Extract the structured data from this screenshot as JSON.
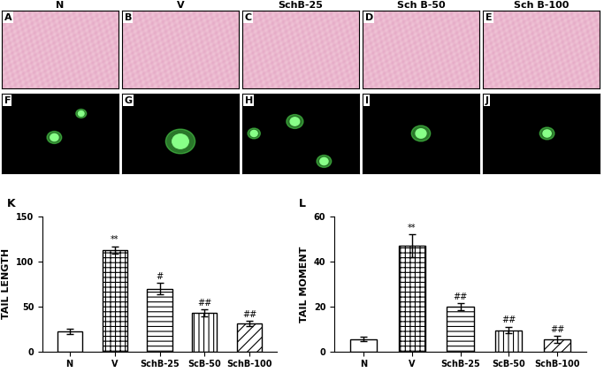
{
  "image_panels": {
    "column_headers": [
      "N",
      "V",
      "SchB-25",
      "Sch B-50",
      "Sch B-100"
    ],
    "row1_labels": [
      "A",
      "B",
      "C",
      "D",
      "E"
    ],
    "row2_labels": [
      "F",
      "G",
      "H",
      "I",
      "J"
    ]
  },
  "chart_data": [
    {
      "type": "bar",
      "annotations": [
        "K"
      ],
      "y_label": "TAIL LENGTH",
      "categories": [
        "N",
        "V",
        "SchB-25",
        "ScB-50",
        "SchB-100"
      ],
      "values": [
        22,
        113,
        70,
        43,
        31
      ],
      "error": [
        3,
        4,
        6,
        4,
        3
      ],
      "significance": [
        null,
        "**",
        "#",
        "##",
        "##"
      ],
      "color": "#ffffff",
      "ylim": [
        0,
        150
      ],
      "yticks": [
        0,
        50,
        100,
        150
      ]
    },
    {
      "type": "bar",
      "annotations": [
        "L"
      ],
      "y_label": "TAIL MOMENT",
      "categories": [
        "N",
        "V",
        "SchB-25",
        "ScB-50",
        "SchB-100"
      ],
      "values": [
        5.5,
        47,
        20,
        9.5,
        5.5
      ],
      "error": [
        1,
        5,
        1.5,
        1.5,
        1.5
      ],
      "significance": [
        null,
        "**",
        "##",
        "##",
        "##"
      ],
      "color": "#ffffff",
      "ylim": [
        0,
        60
      ],
      "yticks": [
        0,
        20,
        40,
        60
      ]
    }
  ]
}
